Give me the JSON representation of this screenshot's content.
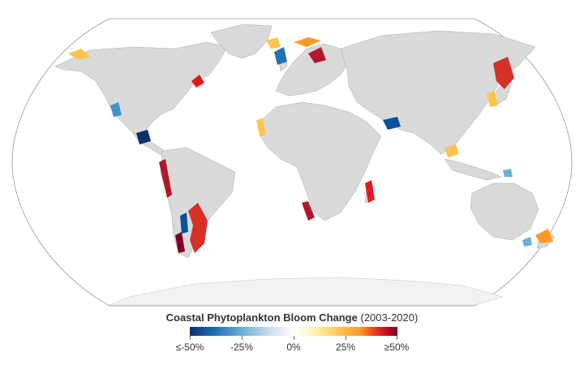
{
  "legend": {
    "title": "Coastal Phytoplankton Bloom Change",
    "subtitle": "(2003-2020)",
    "ticks": [
      "≤-50%",
      "-25%",
      "0%",
      "25%",
      "≥50%"
    ],
    "colors": [
      "#08306b",
      "#1f6fb6",
      "#6baed6",
      "#c6dbef",
      "#ffffff",
      "#fff3b0",
      "#fec44f",
      "#fe9929",
      "#e31a1c",
      "#800026"
    ]
  },
  "map": {
    "projection": "Robinson",
    "land_color": "#d9d9d9",
    "antarctica_color": "#f2f2f2",
    "background_color": "#ffffff"
  }
}
